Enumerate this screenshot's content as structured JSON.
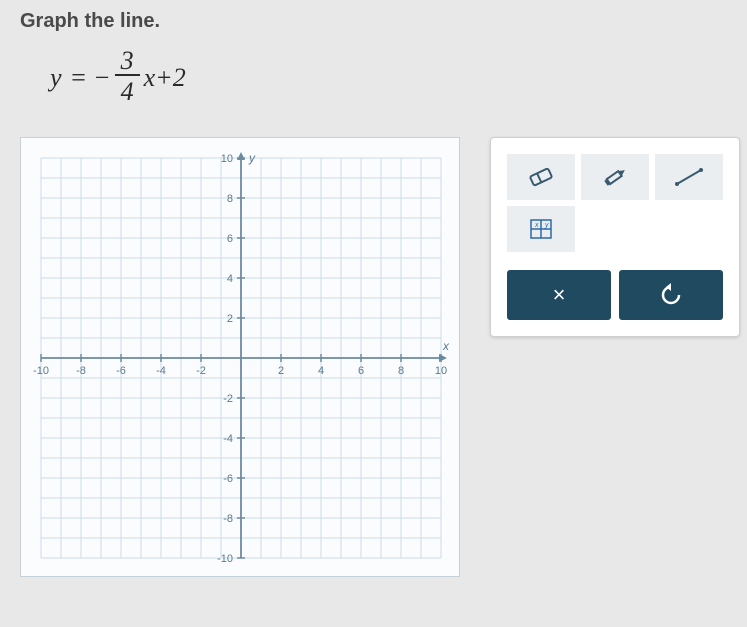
{
  "instruction": "Graph the line.",
  "equation": {
    "lhs": "y",
    "eq": "=",
    "neg": "−",
    "num": "3",
    "den": "4",
    "tail": "x+2"
  },
  "graph": {
    "xmin": -10,
    "xmax": 10,
    "ymin": -10,
    "ymax": 10,
    "tick_step": 2,
    "grid_color": "#c9dde6",
    "axis_color": "#6b8aa0",
    "label_color": "#5a7a90",
    "label_fontsize": 11,
    "bg_color": "#fafcfd",
    "x_labels": {
      "-10": "-10",
      "-8": "-8",
      "-6": "-6",
      "-4": "-4",
      "-2": "-2",
      "2": "2",
      "4": "4",
      "6": "6",
      "8": "8",
      "10": "10"
    },
    "y_labels": {
      "-10": "-10",
      "-8": "-8",
      "-6": "-6",
      "-4": "-4",
      "-2": "-2",
      "2": "2",
      "4": "4",
      "6": "6",
      "8": "8",
      "10": "10"
    },
    "axis_markers": {
      "x": "x",
      "y": "y"
    }
  },
  "toolbox": {
    "eraser_label": "Eraser",
    "pencil_label": "Pencil",
    "line_label": "Line",
    "table_label": "Table",
    "cancel_label": "×",
    "reset_label": "↺"
  },
  "colors": {
    "tool_bg": "#eaeef1",
    "tool_icon": "#3a5a6f",
    "action_bg": "#1f4a5f",
    "action_fg": "#ffffff"
  }
}
